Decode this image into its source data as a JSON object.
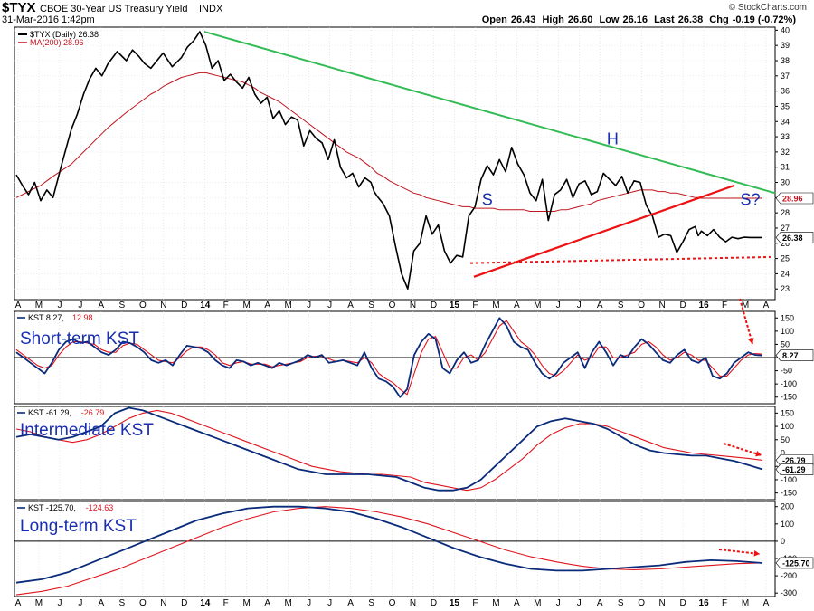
{
  "header": {
    "symbol": "$TYX",
    "name": "CBOE 30-Year US Treasury Yield",
    "exchange": "INDX",
    "date": "31-Mar-2016 1:42pm",
    "open_label": "Open",
    "open": "26.43",
    "high_label": "High",
    "high": "26.60",
    "low_label": "Low",
    "low": "26.16",
    "last_label": "Last",
    "last": "26.38",
    "chg_label": "Chg",
    "chg": "-0.19 (-0.72%)",
    "brand": "© StockCharts.com"
  },
  "colors": {
    "price": "#000000",
    "ma": "#c0141e",
    "kst": "#0a2a7a",
    "signal": "#e0141e",
    "green": "#33bb55",
    "red": "#ee1111",
    "blue_text": "#1a2fb0"
  },
  "chart_data": [
    {
      "type": "line",
      "panel": "price",
      "legend": [
        {
          "label": "$TYX (Daily) 26.38",
          "color": "#000000"
        },
        {
          "label": "MA(200) 28.96",
          "color": "#c0141e"
        }
      ],
      "y_ticks": [
        23,
        24,
        25,
        26,
        27,
        28,
        29,
        30,
        31,
        32,
        33,
        34,
        35,
        36,
        37,
        38,
        39,
        40
      ],
      "ylim": [
        22.3,
        40.2
      ],
      "price_label": "26.38",
      "ma_label": "28.96",
      "x": [
        0,
        2,
        4,
        6,
        8,
        10,
        12,
        15,
        18,
        20,
        22,
        24,
        26,
        28,
        30,
        33,
        36,
        38,
        40,
        42,
        44,
        46,
        48,
        51,
        54,
        56,
        58,
        60,
        62,
        64,
        66,
        68,
        70,
        72,
        74,
        76,
        78,
        80,
        82,
        84,
        86,
        88,
        90,
        92,
        94,
        96,
        98,
        100,
        102,
        104,
        106,
        108,
        110,
        112,
        114,
        116,
        117,
        118,
        120,
        122,
        124,
        126,
        128,
        130,
        132,
        134,
        136,
        138,
        140,
        142,
        144,
        146,
        148,
        150,
        152,
        154,
        156,
        158,
        160,
        162,
        164,
        166,
        168,
        170,
        172,
        174,
        176,
        178,
        180,
        182,
        184,
        186,
        188,
        190,
        192,
        194,
        196,
        198,
        200,
        202,
        204,
        206,
        208,
        210,
        212,
        214,
        216,
        218,
        220,
        222,
        223,
        224,
        226,
        228,
        230,
        232,
        234,
        236,
        238,
        240,
        242,
        244
      ],
      "price": [
        30.5,
        29.8,
        29.2,
        30.0,
        28.8,
        29.5,
        29.0,
        31.3,
        33.5,
        34.5,
        35.8,
        36.8,
        37.5,
        37.0,
        37.8,
        38.6,
        38.0,
        38.7,
        38.3,
        37.8,
        37.5,
        38.0,
        38.5,
        37.6,
        38.2,
        38.9,
        39.3,
        39.9,
        39.0,
        37.5,
        38.0,
        36.7,
        37.1,
        36.6,
        36.2,
        36.9,
        35.8,
        35.2,
        35.6,
        34.2,
        34.7,
        33.8,
        34.3,
        34.1,
        32.4,
        33.4,
        32.9,
        32.6,
        31.5,
        32.8,
        31.0,
        30.3,
        30.6,
        29.7,
        30.3,
        30.0,
        29.4,
        29.1,
        28.6,
        27.8,
        25.8,
        24.0,
        23.0,
        25.5,
        26.0,
        27.8,
        26.6,
        27.2,
        25.5,
        24.7,
        25.2,
        25.1,
        27.8,
        28.4,
        30.2,
        31.1,
        30.5,
        31.5,
        30.7,
        32.3,
        31.2,
        30.5,
        29.3,
        28.8,
        30.2,
        27.5,
        29.2,
        29.5,
        30.2,
        29.0,
        29.9,
        30.1,
        29.2,
        29.4,
        30.6,
        30.2,
        29.8,
        30.4,
        29.3,
        30.1,
        30.0,
        28.5,
        27.8,
        26.4,
        26.6,
        26.5,
        25.4,
        26.1,
        26.9,
        27.1,
        26.5,
        26.8,
        26.5,
        26.9,
        26.4,
        26.1,
        26.4,
        26.3,
        26.4,
        26.38,
        26.38,
        26.38
      ],
      "ma": [
        29.0,
        29.2,
        29.4,
        29.6,
        29.8,
        30.1,
        30.4,
        30.8,
        31.2,
        31.6,
        32.0,
        32.4,
        32.8,
        33.2,
        33.6,
        34.1,
        34.6,
        34.9,
        35.2,
        35.5,
        35.8,
        36.0,
        36.3,
        36.6,
        36.9,
        37.0,
        37.1,
        37.2,
        37.2,
        37.1,
        37.0,
        36.9,
        36.8,
        36.7,
        36.6,
        36.4,
        36.2,
        35.9,
        35.7,
        35.5,
        35.3,
        35.0,
        34.7,
        34.4,
        34.1,
        33.8,
        33.5,
        33.2,
        32.9,
        32.6,
        32.3,
        32.0,
        31.8,
        31.6,
        31.3,
        31.0,
        30.8,
        30.6,
        30.4,
        30.1,
        29.9,
        29.7,
        29.5,
        29.3,
        29.2,
        29.0,
        28.9,
        28.8,
        28.7,
        28.6,
        28.5,
        28.4,
        28.4,
        28.3,
        28.3,
        28.3,
        28.3,
        28.2,
        28.2,
        28.2,
        28.2,
        28.2,
        28.1,
        28.1,
        28.1,
        28.1,
        28.1,
        28.2,
        28.2,
        28.3,
        28.4,
        28.5,
        28.6,
        28.8,
        28.9,
        29.0,
        29.1,
        29.2,
        29.3,
        29.4,
        29.5,
        29.5,
        29.5,
        29.4,
        29.4,
        29.3,
        29.3,
        29.2,
        29.1,
        29.0,
        29.0,
        28.96,
        28.96,
        28.96,
        28.96,
        28.96,
        28.96,
        28.96,
        28.96,
        28.96,
        28.96,
        28.96
      ],
      "annotations": [
        {
          "text": "S",
          "x": 154,
          "y": 28.5
        },
        {
          "text": "H",
          "x": 195,
          "y": 32.5
        },
        {
          "text": "S?",
          "x": 240,
          "y": 28.5
        }
      ]
    },
    {
      "type": "line",
      "panel": "short",
      "legend_prefix": "KST",
      "kst_val": "8.27",
      "sig_val": "12.98",
      "title": "Short-term KST",
      "y_ticks": [
        -150,
        -100,
        -50,
        0,
        50,
        100,
        150
      ],
      "ylim": [
        -175,
        175
      ],
      "value_label": "8.27",
      "kst": [
        20,
        0,
        -20,
        -40,
        -60,
        -20,
        30,
        60,
        70,
        55,
        60,
        40,
        20,
        10,
        30,
        60,
        55,
        40,
        20,
        -10,
        -20,
        -10,
        -30,
        10,
        45,
        40,
        35,
        20,
        -10,
        -30,
        -40,
        -10,
        -15,
        -30,
        -20,
        -30,
        -40,
        -20,
        -30,
        -20,
        -10,
        10,
        0,
        10,
        -20,
        -15,
        -10,
        -20,
        -30,
        20,
        -40,
        -80,
        -90,
        -110,
        -150,
        -120,
        10,
        60,
        90,
        70,
        -40,
        -60,
        -10,
        20,
        -20,
        -10,
        50,
        100,
        150,
        120,
        60,
        40,
        30,
        -20,
        -60,
        -80,
        -60,
        -20,
        0,
        20,
        -40,
        20,
        60,
        20,
        -30,
        10,
        0,
        40,
        70,
        50,
        20,
        -10,
        -20,
        10,
        30,
        -10,
        -20,
        0,
        -70,
        -80,
        -60,
        -20,
        0,
        20,
        10,
        8
      ],
      "signal": [
        30,
        10,
        -10,
        -30,
        -40,
        -30,
        10,
        40,
        60,
        60,
        55,
        50,
        30,
        20,
        20,
        45,
        55,
        50,
        30,
        10,
        -10,
        -15,
        -20,
        0,
        25,
        40,
        40,
        30,
        10,
        -20,
        -30,
        -20,
        -15,
        -25,
        -25,
        -25,
        -35,
        -30,
        -25,
        -20,
        -15,
        0,
        5,
        5,
        -5,
        -15,
        -10,
        -15,
        -20,
        0,
        -20,
        -60,
        -80,
        -95,
        -120,
        -140,
        -60,
        20,
        70,
        80,
        20,
        -40,
        -40,
        0,
        10,
        -10,
        20,
        70,
        120,
        140,
        100,
        60,
        40,
        10,
        -30,
        -60,
        -70,
        -50,
        -20,
        10,
        -10,
        0,
        40,
        40,
        0,
        0,
        10,
        20,
        50,
        60,
        40,
        10,
        -10,
        0,
        20,
        10,
        -10,
        -10,
        -40,
        -70,
        -70,
        -40,
        -10,
        10,
        15,
        13
      ]
    },
    {
      "type": "line",
      "panel": "intermediate",
      "legend_prefix": "KST",
      "kst_val": "-61.29",
      "sig_val": "-26.79",
      "title": "Intermediate KST",
      "y_ticks": [
        -150,
        -100,
        -50,
        0,
        50,
        100,
        150
      ],
      "ylim": [
        -175,
        175
      ],
      "value_labels": [
        "-26.79",
        "-61.29"
      ],
      "kst": [
        60,
        70,
        60,
        50,
        60,
        80,
        100,
        150,
        170,
        160,
        140,
        120,
        100,
        80,
        60,
        40,
        20,
        0,
        -20,
        -40,
        -60,
        -70,
        -80,
        -80,
        -80,
        -80,
        -85,
        -90,
        -110,
        -130,
        -140,
        -140,
        -130,
        -100,
        -50,
        0,
        50,
        100,
        120,
        130,
        120,
        110,
        90,
        60,
        30,
        10,
        0,
        -5,
        -10,
        -10,
        -20,
        -30,
        -45,
        -61
      ],
      "signal": [
        90,
        80,
        60,
        50,
        40,
        50,
        70,
        100,
        130,
        150,
        160,
        150,
        130,
        110,
        90,
        70,
        50,
        30,
        10,
        -10,
        -30,
        -50,
        -60,
        -70,
        -75,
        -80,
        -80,
        -85,
        -90,
        -110,
        -120,
        -130,
        -140,
        -130,
        -100,
        -60,
        -20,
        30,
        70,
        95,
        110,
        110,
        100,
        80,
        60,
        40,
        20,
        10,
        0,
        -5,
        -10,
        -15,
        -20,
        -27
      ]
    },
    {
      "type": "line",
      "panel": "long",
      "legend_prefix": "KST",
      "kst_val": "-125.70",
      "sig_val": "-124.63",
      "title": "Long-term KST",
      "y_ticks": [
        -300,
        -200,
        -100,
        0,
        100,
        200
      ],
      "ylim": [
        -320,
        230
      ],
      "value_label": "-125.70",
      "kst": [
        -240,
        -220,
        -180,
        -120,
        -60,
        0,
        60,
        120,
        160,
        190,
        200,
        200,
        190,
        170,
        130,
        80,
        20,
        -40,
        -90,
        -130,
        -160,
        -170,
        -170,
        -160,
        -150,
        -140,
        -120,
        -110,
        -115,
        -126
      ],
      "signal": [
        -310,
        -290,
        -260,
        -210,
        -160,
        -100,
        -40,
        20,
        80,
        130,
        170,
        190,
        200,
        190,
        170,
        140,
        100,
        50,
        0,
        -50,
        -90,
        -120,
        -145,
        -160,
        -165,
        -160,
        -150,
        -140,
        -130,
        -125
      ]
    }
  ],
  "x_axis": {
    "months": [
      "A",
      "M",
      "J",
      "J",
      "A",
      "S",
      "O",
      "N",
      "D",
      "14",
      "F",
      "M",
      "A",
      "M",
      "J",
      "J",
      "A",
      "S",
      "O",
      "N",
      "D",
      "15",
      "F",
      "M",
      "A",
      "M",
      "J",
      "J",
      "A",
      "S",
      "O",
      "N",
      "D",
      "16",
      "F",
      "M",
      "A"
    ],
    "bold_labels": [
      "14",
      "15",
      "16"
    ]
  }
}
